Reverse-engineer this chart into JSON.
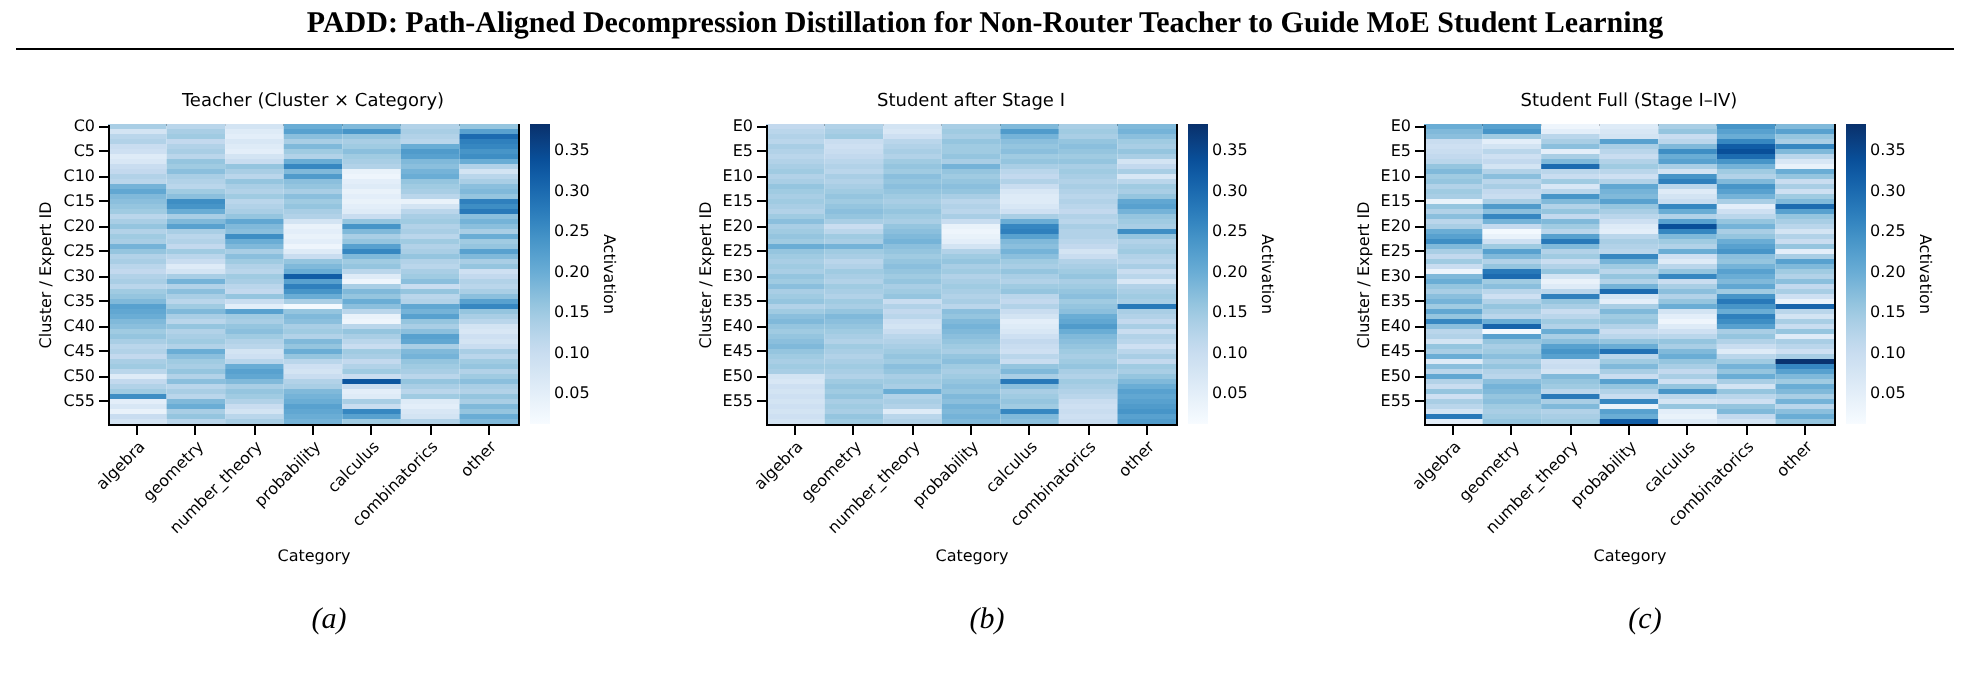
{
  "chart_data": [
    {
      "type": "heatmap",
      "title": "Teacher (Cluster × Category)",
      "xlabel": "Category",
      "ylabel": "Cluster / Expert ID",
      "clabel": "Activation",
      "annotations": [
        "PADD: Path-Aligned Decompression Distillation for Non-Router Teacher to Guide MoE Student Learning",
        "(a)"
      ],
      "clim": [
        0.013,
        0.384
      ],
      "cticks": [
        0.05,
        {
          "value": 0.1,
          "label": "0.10"
        },
        0.15,
        {
          "value": 0.2,
          "label": "0.20"
        },
        0.25,
        {
          "value": 0.3,
          "label": "0.30"
        },
        0.35
      ],
      "categories": [
        "algebra",
        "geometry",
        "number_theory",
        "probability",
        "calculus",
        "combinatorics",
        "other"
      ],
      "y_categories": [
        "C0",
        null,
        null,
        null,
        null,
        "C5",
        null,
        null,
        null,
        null,
        "C10",
        null,
        null,
        null,
        null,
        "C15",
        null,
        null,
        null,
        null,
        "C20",
        null,
        null,
        null,
        null,
        "C25",
        null,
        null,
        null,
        null,
        "C30",
        null,
        null,
        null,
        null,
        "C35",
        null,
        null,
        null,
        null,
        "C40",
        null,
        null,
        null,
        null,
        "C45",
        null,
        null,
        null,
        null,
        "C50",
        null,
        null,
        null,
        null,
        "C55",
        null,
        null,
        null,
        null
      ],
      "cells": [
        [
          0.14,
          0.12,
          0.08,
          0.2,
          0.18,
          0.13,
          0.16
        ],
        [
          0.08,
          0.14,
          0.06,
          0.22,
          0.24,
          0.14,
          0.22
        ],
        [
          0.12,
          0.15,
          0.05,
          0.17,
          0.16,
          0.13,
          0.3
        ],
        [
          0.13,
          0.11,
          0.07,
          0.14,
          0.14,
          0.12,
          0.27
        ],
        [
          0.1,
          0.13,
          0.06,
          0.18,
          0.15,
          0.2,
          0.26
        ],
        [
          0.09,
          0.14,
          0.05,
          0.15,
          0.17,
          0.23,
          0.24
        ],
        [
          0.06,
          0.12,
          0.08,
          0.13,
          0.15,
          0.22,
          0.25
        ],
        [
          0.07,
          0.16,
          0.1,
          0.2,
          0.14,
          0.18,
          0.2
        ],
        [
          0.1,
          0.15,
          0.16,
          0.26,
          0.13,
          0.17,
          0.13
        ],
        [
          0.11,
          0.17,
          0.14,
          0.18,
          0.04,
          0.19,
          0.08
        ],
        [
          0.13,
          0.14,
          0.12,
          0.23,
          0.03,
          0.2,
          0.12
        ],
        [
          0.12,
          0.13,
          0.16,
          0.17,
          0.05,
          0.16,
          0.14
        ],
        [
          0.19,
          0.12,
          0.14,
          0.16,
          0.06,
          0.15,
          0.17
        ],
        [
          0.21,
          0.15,
          0.13,
          0.14,
          0.04,
          0.14,
          0.18
        ],
        [
          0.18,
          0.17,
          0.15,
          0.17,
          0.05,
          0.12,
          0.16
        ],
        [
          0.17,
          0.25,
          0.12,
          0.15,
          0.04,
          0.04,
          0.27
        ],
        [
          0.16,
          0.24,
          0.13,
          0.16,
          0.05,
          0.08,
          0.25
        ],
        [
          0.15,
          0.2,
          0.14,
          0.14,
          0.06,
          0.12,
          0.28
        ],
        [
          0.12,
          0.14,
          0.16,
          0.13,
          0.1,
          0.14,
          0.17
        ],
        [
          0.14,
          0.18,
          0.21,
          0.08,
          0.16,
          0.15,
          0.19
        ],
        [
          0.16,
          0.22,
          0.18,
          0.04,
          0.24,
          0.13,
          0.17
        ],
        [
          0.13,
          0.14,
          0.17,
          0.05,
          0.18,
          0.14,
          0.14
        ],
        [
          0.15,
          0.12,
          0.25,
          0.04,
          0.14,
          0.12,
          0.2
        ],
        [
          0.14,
          0.13,
          0.2,
          0.05,
          0.16,
          0.15,
          0.15
        ],
        [
          0.19,
          0.11,
          0.18,
          0.03,
          0.22,
          0.13,
          0.16
        ],
        [
          0.16,
          0.15,
          0.14,
          0.06,
          0.26,
          0.14,
          0.22
        ],
        [
          0.13,
          0.12,
          0.17,
          0.1,
          0.18,
          0.16,
          0.18
        ],
        [
          0.14,
          0.1,
          0.15,
          0.16,
          0.15,
          0.13,
          0.14
        ],
        [
          0.12,
          0.06,
          0.13,
          0.18,
          0.16,
          0.12,
          0.16
        ],
        [
          0.11,
          0.08,
          0.12,
          0.2,
          0.12,
          0.14,
          0.09
        ],
        [
          0.13,
          0.14,
          0.15,
          0.32,
          0.06,
          0.15,
          0.11
        ],
        [
          0.14,
          0.19,
          0.14,
          0.22,
          0.03,
          0.17,
          0.13
        ],
        [
          0.12,
          0.13,
          0.12,
          0.27,
          0.14,
          0.1,
          0.12
        ],
        [
          0.15,
          0.17,
          0.11,
          0.24,
          0.18,
          0.16,
          0.14
        ],
        [
          0.16,
          0.14,
          0.16,
          0.2,
          0.16,
          0.12,
          0.17
        ],
        [
          0.18,
          0.12,
          0.1,
          0.14,
          0.2,
          0.13,
          0.22
        ],
        [
          0.22,
          0.15,
          0.05,
          0.02,
          0.17,
          0.21,
          0.26
        ],
        [
          0.21,
          0.18,
          0.22,
          0.16,
          0.12,
          0.19,
          0.16
        ],
        [
          0.2,
          0.14,
          0.15,
          0.18,
          0.04,
          0.22,
          0.14
        ],
        [
          0.18,
          0.12,
          0.14,
          0.17,
          0.03,
          0.16,
          0.12
        ],
        [
          0.17,
          0.16,
          0.16,
          0.14,
          0.12,
          0.14,
          0.08
        ],
        [
          0.15,
          0.13,
          0.17,
          0.15,
          0.16,
          0.17,
          0.07
        ],
        [
          0.16,
          0.14,
          0.15,
          0.13,
          0.14,
          0.22,
          0.09
        ],
        [
          0.14,
          0.15,
          0.13,
          0.18,
          0.12,
          0.21,
          0.08
        ],
        [
          0.12,
          0.13,
          0.12,
          0.16,
          0.1,
          0.14,
          0.1
        ],
        [
          0.13,
          0.2,
          0.08,
          0.2,
          0.15,
          0.18,
          0.14
        ],
        [
          0.11,
          0.17,
          0.09,
          0.16,
          0.14,
          0.19,
          0.12
        ],
        [
          0.14,
          0.15,
          0.12,
          0.12,
          0.11,
          0.16,
          0.15
        ],
        [
          0.15,
          0.14,
          0.2,
          0.09,
          0.13,
          0.15,
          0.16
        ],
        [
          0.12,
          0.16,
          0.22,
          0.08,
          0.15,
          0.14,
          0.13
        ],
        [
          0.06,
          0.13,
          0.21,
          0.1,
          0.1,
          0.12,
          0.15
        ],
        [
          0.11,
          0.17,
          0.18,
          0.13,
          0.33,
          0.16,
          0.17
        ],
        [
          0.13,
          0.12,
          0.14,
          0.14,
          0.1,
          0.14,
          0.14
        ],
        [
          0.15,
          0.14,
          0.16,
          0.18,
          0.05,
          0.12,
          0.13
        ],
        [
          0.25,
          0.12,
          0.15,
          0.19,
          0.06,
          0.15,
          0.16
        ],
        [
          0.05,
          0.18,
          0.13,
          0.2,
          0.14,
          0.06,
          0.14
        ],
        [
          0.07,
          0.2,
          0.1,
          0.22,
          0.1,
          0.05,
          0.18
        ],
        [
          0.04,
          0.14,
          0.08,
          0.21,
          0.26,
          0.07,
          0.16
        ],
        [
          0.1,
          0.16,
          0.12,
          0.2,
          0.22,
          0.08,
          0.2
        ],
        [
          0.08,
          0.12,
          0.14,
          0.19,
          0.15,
          0.13,
          0.18
        ]
      ]
    },
    {
      "type": "heatmap",
      "title": "Student after Stage I",
      "xlabel": "Category",
      "ylabel": "Cluster / Expert ID",
      "clabel": "Activation",
      "annotations": [
        "(b)"
      ],
      "clim": [
        0.013,
        0.384
      ],
      "cticks": [
        0.05,
        {
          "value": 0.1,
          "label": "0.10"
        },
        0.15,
        {
          "value": 0.2,
          "label": "0.20"
        },
        0.25,
        {
          "value": 0.3,
          "label": "0.30"
        },
        0.35
      ],
      "categories": [
        "algebra",
        "geometry",
        "number_theory",
        "probability",
        "calculus",
        "combinatorics",
        "other"
      ],
      "y_categories": [
        "E0",
        null,
        null,
        null,
        null,
        "E5",
        null,
        null,
        null,
        null,
        "E10",
        null,
        null,
        null,
        null,
        "E15",
        null,
        null,
        null,
        null,
        "E20",
        null,
        null,
        null,
        null,
        "E25",
        null,
        null,
        null,
        null,
        "E30",
        null,
        null,
        null,
        null,
        "E35",
        null,
        null,
        null,
        null,
        "E40",
        null,
        null,
        null,
        null,
        "E45",
        null,
        null,
        null,
        null,
        "E50",
        null,
        null,
        null,
        null,
        "E55",
        null,
        null,
        null,
        null
      ],
      "cells": [
        [
          0.11,
          0.13,
          0.08,
          0.14,
          0.18,
          0.14,
          0.18
        ],
        [
          0.12,
          0.14,
          0.07,
          0.15,
          0.23,
          0.15,
          0.19
        ],
        [
          0.13,
          0.15,
          0.09,
          0.14,
          0.19,
          0.14,
          0.17
        ],
        [
          0.12,
          0.1,
          0.12,
          0.16,
          0.17,
          0.16,
          0.15
        ],
        [
          0.14,
          0.09,
          0.13,
          0.15,
          0.16,
          0.17,
          0.14
        ],
        [
          0.13,
          0.1,
          0.14,
          0.15,
          0.17,
          0.16,
          0.16
        ],
        [
          0.12,
          0.11,
          0.13,
          0.16,
          0.15,
          0.15,
          0.14
        ],
        [
          0.13,
          0.12,
          0.15,
          0.14,
          0.16,
          0.16,
          0.08
        ],
        [
          0.14,
          0.13,
          0.16,
          0.19,
          0.14,
          0.14,
          0.11
        ],
        [
          0.15,
          0.12,
          0.15,
          0.16,
          0.12,
          0.15,
          0.14
        ],
        [
          0.13,
          0.14,
          0.17,
          0.15,
          0.11,
          0.14,
          0.07
        ],
        [
          0.14,
          0.13,
          0.16,
          0.16,
          0.13,
          0.13,
          0.12
        ],
        [
          0.16,
          0.14,
          0.17,
          0.17,
          0.1,
          0.14,
          0.15
        ],
        [
          0.15,
          0.15,
          0.16,
          0.16,
          0.07,
          0.13,
          0.14
        ],
        [
          0.14,
          0.16,
          0.15,
          0.14,
          0.06,
          0.12,
          0.16
        ],
        [
          0.15,
          0.15,
          0.14,
          0.12,
          0.06,
          0.13,
          0.21
        ],
        [
          0.14,
          0.16,
          0.15,
          0.13,
          0.07,
          0.12,
          0.22
        ],
        [
          0.13,
          0.17,
          0.16,
          0.12,
          0.09,
          0.11,
          0.19
        ],
        [
          0.15,
          0.16,
          0.15,
          0.14,
          0.14,
          0.13,
          0.16
        ],
        [
          0.17,
          0.14,
          0.14,
          0.1,
          0.2,
          0.12,
          0.15
        ],
        [
          0.14,
          0.1,
          0.16,
          0.04,
          0.26,
          0.14,
          0.14
        ],
        [
          0.15,
          0.12,
          0.17,
          0.03,
          0.27,
          0.13,
          0.25
        ],
        [
          0.16,
          0.15,
          0.18,
          0.04,
          0.22,
          0.13,
          0.16
        ],
        [
          0.15,
          0.14,
          0.19,
          0.05,
          0.18,
          0.12,
          0.13
        ],
        [
          0.2,
          0.19,
          0.17,
          0.08,
          0.17,
          0.11,
          0.14
        ],
        [
          0.16,
          0.15,
          0.16,
          0.13,
          0.19,
          0.08,
          0.15
        ],
        [
          0.15,
          0.14,
          0.15,
          0.15,
          0.17,
          0.1,
          0.13
        ],
        [
          0.14,
          0.12,
          0.16,
          0.16,
          0.15,
          0.13,
          0.12
        ],
        [
          0.15,
          0.13,
          0.17,
          0.14,
          0.14,
          0.14,
          0.14
        ],
        [
          0.14,
          0.15,
          0.16,
          0.15,
          0.16,
          0.15,
          0.1
        ],
        [
          0.16,
          0.14,
          0.15,
          0.13,
          0.14,
          0.16,
          0.12
        ],
        [
          0.15,
          0.13,
          0.16,
          0.14,
          0.13,
          0.14,
          0.07
        ],
        [
          0.17,
          0.15,
          0.14,
          0.15,
          0.15,
          0.15,
          0.13
        ],
        [
          0.14,
          0.14,
          0.15,
          0.14,
          0.16,
          0.16,
          0.14
        ],
        [
          0.15,
          0.13,
          0.16,
          0.13,
          0.12,
          0.17,
          0.15
        ],
        [
          0.16,
          0.15,
          0.1,
          0.14,
          0.11,
          0.15,
          0.14
        ],
        [
          0.13,
          0.14,
          0.13,
          0.12,
          0.13,
          0.16,
          0.28
        ],
        [
          0.15,
          0.16,
          0.11,
          0.17,
          0.1,
          0.17,
          0.14
        ],
        [
          0.17,
          0.18,
          0.12,
          0.16,
          0.08,
          0.2,
          0.13
        ],
        [
          0.18,
          0.17,
          0.09,
          0.18,
          0.05,
          0.21,
          0.11
        ],
        [
          0.16,
          0.16,
          0.08,
          0.19,
          0.06,
          0.23,
          0.14
        ],
        [
          0.15,
          0.15,
          0.1,
          0.18,
          0.07,
          0.2,
          0.1
        ],
        [
          0.16,
          0.14,
          0.12,
          0.17,
          0.09,
          0.18,
          0.13
        ],
        [
          0.17,
          0.13,
          0.13,
          0.16,
          0.11,
          0.17,
          0.12
        ],
        [
          0.18,
          0.15,
          0.14,
          0.15,
          0.1,
          0.16,
          0.09
        ],
        [
          0.16,
          0.14,
          0.15,
          0.14,
          0.09,
          0.15,
          0.12
        ],
        [
          0.15,
          0.13,
          0.16,
          0.16,
          0.12,
          0.14,
          0.14
        ],
        [
          0.14,
          0.14,
          0.15,
          0.17,
          0.1,
          0.15,
          0.11
        ],
        [
          0.15,
          0.15,
          0.17,
          0.15,
          0.16,
          0.16,
          0.15
        ],
        [
          0.14,
          0.14,
          0.16,
          0.14,
          0.18,
          0.14,
          0.14
        ],
        [
          0.08,
          0.13,
          0.14,
          0.15,
          0.14,
          0.13,
          0.16
        ],
        [
          0.07,
          0.15,
          0.15,
          0.16,
          0.28,
          0.15,
          0.18
        ],
        [
          0.09,
          0.16,
          0.14,
          0.17,
          0.17,
          0.14,
          0.2
        ],
        [
          0.08,
          0.15,
          0.2,
          0.16,
          0.14,
          0.13,
          0.22
        ],
        [
          0.09,
          0.16,
          0.13,
          0.18,
          0.15,
          0.12,
          0.21
        ],
        [
          0.08,
          0.14,
          0.14,
          0.17,
          0.16,
          0.1,
          0.22
        ],
        [
          0.09,
          0.15,
          0.13,
          0.19,
          0.15,
          0.09,
          0.23
        ],
        [
          0.08,
          0.14,
          0.06,
          0.18,
          0.26,
          0.1,
          0.24
        ],
        [
          0.09,
          0.16,
          0.12,
          0.19,
          0.18,
          0.09,
          0.22
        ],
        [
          0.08,
          0.15,
          0.13,
          0.18,
          0.17,
          0.1,
          0.23
        ]
      ]
    },
    {
      "type": "heatmap",
      "title": "Student Full (Stage I–IV)",
      "xlabel": "Category",
      "ylabel": "Cluster / Expert ID",
      "clabel": "Activation",
      "annotations": [
        "(c)"
      ],
      "clim": [
        0.013,
        0.384
      ],
      "cticks": [
        0.05,
        {
          "value": 0.1,
          "label": "0.10"
        },
        0.15,
        {
          "value": 0.2,
          "label": "0.20"
        },
        0.25,
        {
          "value": 0.3,
          "label": "0.30"
        },
        0.35
      ],
      "categories": [
        "algebra",
        "geometry",
        "number_theory",
        "probability",
        "calculus",
        "combinatorics",
        "other"
      ],
      "y_categories": [
        "E0",
        null,
        null,
        null,
        null,
        "E5",
        null,
        null,
        null,
        null,
        "E10",
        null,
        null,
        null,
        null,
        "E15",
        null,
        null,
        null,
        null,
        "E20",
        null,
        null,
        null,
        null,
        "E25",
        null,
        null,
        null,
        null,
        "E30",
        null,
        null,
        null,
        null,
        "E35",
        null,
        null,
        null,
        null,
        "E40",
        null,
        null,
        null,
        null,
        "E45",
        null,
        null,
        null,
        null,
        "E50",
        null,
        null,
        null,
        null,
        "E55",
        null,
        null,
        null,
        null
      ],
      "cells": [
        [
          0.2,
          0.22,
          0.03,
          0.06,
          0.14,
          0.24,
          0.18
        ],
        [
          0.18,
          0.24,
          0.05,
          0.07,
          0.16,
          0.22,
          0.22
        ],
        [
          0.17,
          0.15,
          0.12,
          0.08,
          0.1,
          0.2,
          0.16
        ],
        [
          0.1,
          0.05,
          0.14,
          0.22,
          0.12,
          0.26,
          0.14
        ],
        [
          0.09,
          0.08,
          0.17,
          0.14,
          0.18,
          0.32,
          0.26
        ],
        [
          0.1,
          0.12,
          0.05,
          0.12,
          0.25,
          0.34,
          0.18
        ],
        [
          0.11,
          0.09,
          0.14,
          0.1,
          0.2,
          0.3,
          0.12
        ],
        [
          0.12,
          0.11,
          0.18,
          0.13,
          0.22,
          0.24,
          0.07
        ],
        [
          0.16,
          0.08,
          0.3,
          0.15,
          0.14,
          0.19,
          0.04
        ],
        [
          0.18,
          0.13,
          0.12,
          0.12,
          0.08,
          0.15,
          0.2
        ],
        [
          0.15,
          0.17,
          0.1,
          0.09,
          0.24,
          0.13,
          0.16
        ],
        [
          0.16,
          0.12,
          0.15,
          0.13,
          0.27,
          0.18,
          0.1
        ],
        [
          0.13,
          0.14,
          0.07,
          0.21,
          0.12,
          0.24,
          0.14
        ],
        [
          0.15,
          0.11,
          0.12,
          0.19,
          0.06,
          0.22,
          0.09
        ],
        [
          0.14,
          0.1,
          0.24,
          0.18,
          0.08,
          0.19,
          0.15
        ],
        [
          0.04,
          0.14,
          0.18,
          0.22,
          0.1,
          0.14,
          0.18
        ],
        [
          0.16,
          0.23,
          0.13,
          0.16,
          0.26,
          0.05,
          0.3
        ],
        [
          0.13,
          0.17,
          0.16,
          0.14,
          0.2,
          0.09,
          0.22
        ],
        [
          0.17,
          0.26,
          0.11,
          0.12,
          0.13,
          0.12,
          0.16
        ],
        [
          0.12,
          0.19,
          0.18,
          0.09,
          0.22,
          0.16,
          0.14
        ],
        [
          0.14,
          0.11,
          0.15,
          0.06,
          0.34,
          0.19,
          0.12
        ],
        [
          0.2,
          0.02,
          0.12,
          0.05,
          0.26,
          0.14,
          0.08
        ],
        [
          0.22,
          0.04,
          0.22,
          0.12,
          0.18,
          0.16,
          0.13
        ],
        [
          0.25,
          0.09,
          0.28,
          0.14,
          0.15,
          0.2,
          0.1
        ],
        [
          0.18,
          0.15,
          0.18,
          0.13,
          0.13,
          0.22,
          0.16
        ],
        [
          0.14,
          0.22,
          0.13,
          0.12,
          0.2,
          0.24,
          0.05
        ],
        [
          0.11,
          0.18,
          0.15,
          0.26,
          0.09,
          0.17,
          0.14
        ],
        [
          0.15,
          0.13,
          0.1,
          0.19,
          0.06,
          0.16,
          0.22
        ],
        [
          0.1,
          0.16,
          0.13,
          0.15,
          0.12,
          0.19,
          0.18
        ],
        [
          0.03,
          0.28,
          0.16,
          0.12,
          0.16,
          0.22,
          0.15
        ],
        [
          0.18,
          0.3,
          0.08,
          0.16,
          0.26,
          0.2,
          0.13
        ],
        [
          0.2,
          0.15,
          0.04,
          0.13,
          0.1,
          0.18,
          0.17
        ],
        [
          0.16,
          0.17,
          0.06,
          0.19,
          0.14,
          0.21,
          0.11
        ],
        [
          0.14,
          0.12,
          0.12,
          0.3,
          0.17,
          0.15,
          0.14
        ],
        [
          0.17,
          0.09,
          0.27,
          0.08,
          0.13,
          0.24,
          0.09
        ],
        [
          0.19,
          0.13,
          0.16,
          0.05,
          0.16,
          0.28,
          0.04
        ],
        [
          0.15,
          0.16,
          0.14,
          0.14,
          0.2,
          0.24,
          0.31
        ],
        [
          0.21,
          0.14,
          0.1,
          0.18,
          0.08,
          0.2,
          0.12
        ],
        [
          0.16,
          0.12,
          0.12,
          0.15,
          0.05,
          0.27,
          0.08
        ],
        [
          0.26,
          0.2,
          0.15,
          0.16,
          0.03,
          0.25,
          0.14
        ],
        [
          0.17,
          0.31,
          0.13,
          0.13,
          0.06,
          0.22,
          0.1
        ],
        [
          0.12,
          0.02,
          0.2,
          0.1,
          0.09,
          0.14,
          0.16
        ],
        [
          0.13,
          0.22,
          0.14,
          0.12,
          0.12,
          0.16,
          0.06
        ],
        [
          0.08,
          0.16,
          0.17,
          0.16,
          0.16,
          0.13,
          0.14
        ],
        [
          0.16,
          0.14,
          0.22,
          0.2,
          0.14,
          0.1,
          0.12
        ],
        [
          0.14,
          0.15,
          0.24,
          0.29,
          0.18,
          0.06,
          0.09
        ],
        [
          0.2,
          0.17,
          0.22,
          0.12,
          0.2,
          0.12,
          0.14
        ],
        [
          0.06,
          0.14,
          0.09,
          0.15,
          0.16,
          0.15,
          0.38
        ],
        [
          0.17,
          0.16,
          0.1,
          0.18,
          0.14,
          0.19,
          0.26
        ],
        [
          0.12,
          0.13,
          0.08,
          0.14,
          0.11,
          0.16,
          0.22
        ],
        [
          0.21,
          0.12,
          0.18,
          0.1,
          0.14,
          0.2,
          0.18
        ],
        [
          0.13,
          0.17,
          0.16,
          0.22,
          0.09,
          0.14,
          0.15
        ],
        [
          0.1,
          0.19,
          0.15,
          0.16,
          0.16,
          0.08,
          0.2
        ],
        [
          0.16,
          0.18,
          0.12,
          0.13,
          0.24,
          0.16,
          0.18
        ],
        [
          0.09,
          0.16,
          0.28,
          0.1,
          0.12,
          0.12,
          0.14
        ],
        [
          0.14,
          0.17,
          0.14,
          0.26,
          0.08,
          0.09,
          0.19
        ],
        [
          0.12,
          0.15,
          0.18,
          0.04,
          0.16,
          0.16,
          0.12
        ],
        [
          0.08,
          0.14,
          0.13,
          0.22,
          0.05,
          0.18,
          0.17
        ],
        [
          0.28,
          0.15,
          0.14,
          0.2,
          0.04,
          0.11,
          0.2
        ],
        [
          0.05,
          0.16,
          0.15,
          0.32,
          0.06,
          0.08,
          0.16
        ]
      ]
    }
  ]
}
